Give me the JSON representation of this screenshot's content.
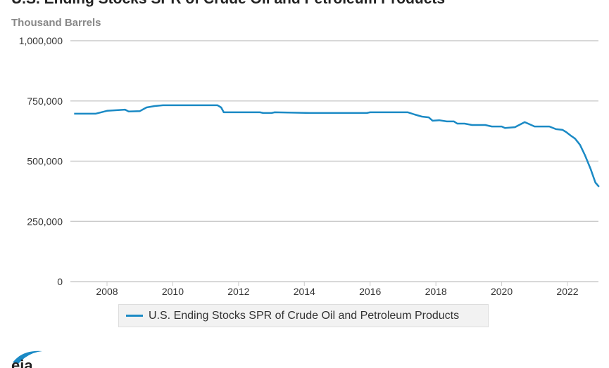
{
  "chart_data": {
    "type": "line",
    "title": "U.S. Ending Stocks SPR of Crude Oil and Petroleum Products",
    "ylabel": "Thousand Barrels",
    "xlabel": "",
    "ylim": [
      0,
      1000000
    ],
    "xlim": [
      2006.9,
      2023.0
    ],
    "grid": true,
    "legend_position": "bottom",
    "y_ticks": [
      "0",
      "250,000",
      "500,000",
      "750,000",
      "1,000,000"
    ],
    "y_tick_values": [
      0,
      250000,
      500000,
      750000,
      1000000
    ],
    "x_ticks": [
      "2008",
      "2010",
      "2012",
      "2014",
      "2016",
      "2018",
      "2020",
      "2022"
    ],
    "series": [
      {
        "name": "U.S. Ending Stocks SPR of Crude Oil and Petroleum Products",
        "color": "#1b8ac5",
        "x": [
          2007.0,
          2007.65,
          2008.0,
          2008.55,
          2008.66,
          2009.0,
          2009.2,
          2009.45,
          2009.7,
          2011.36,
          2011.47,
          2011.55,
          2012.65,
          2012.75,
          2013.0,
          2013.1,
          2014.17,
          2015.9,
          2016.0,
          2017.15,
          2017.35,
          2017.57,
          2017.78,
          2017.9,
          2018.1,
          2018.33,
          2018.55,
          2018.65,
          2018.87,
          2019.1,
          2019.5,
          2019.7,
          2020.0,
          2020.1,
          2020.4,
          2020.7,
          2020.9,
          2021.0,
          2021.45,
          2021.65,
          2021.85,
          2021.96,
          2022.1,
          2022.23,
          2022.38,
          2022.53,
          2022.7,
          2022.85,
          2022.96
        ],
        "values": [
          697000,
          697000,
          709000,
          714000,
          706000,
          708000,
          723000,
          729000,
          732000,
          732000,
          723000,
          703000,
          703000,
          700000,
          700000,
          703000,
          700000,
          700000,
          703000,
          703000,
          694000,
          685000,
          682000,
          668000,
          670000,
          665000,
          665000,
          656000,
          656000,
          650000,
          650000,
          644000,
          644000,
          638000,
          641000,
          662000,
          650000,
          644000,
          644000,
          633000,
          630000,
          621000,
          606000,
          594000,
          568000,
          525000,
          469000,
          411000,
          394000
        ]
      }
    ]
  },
  "logo_text": "eia"
}
